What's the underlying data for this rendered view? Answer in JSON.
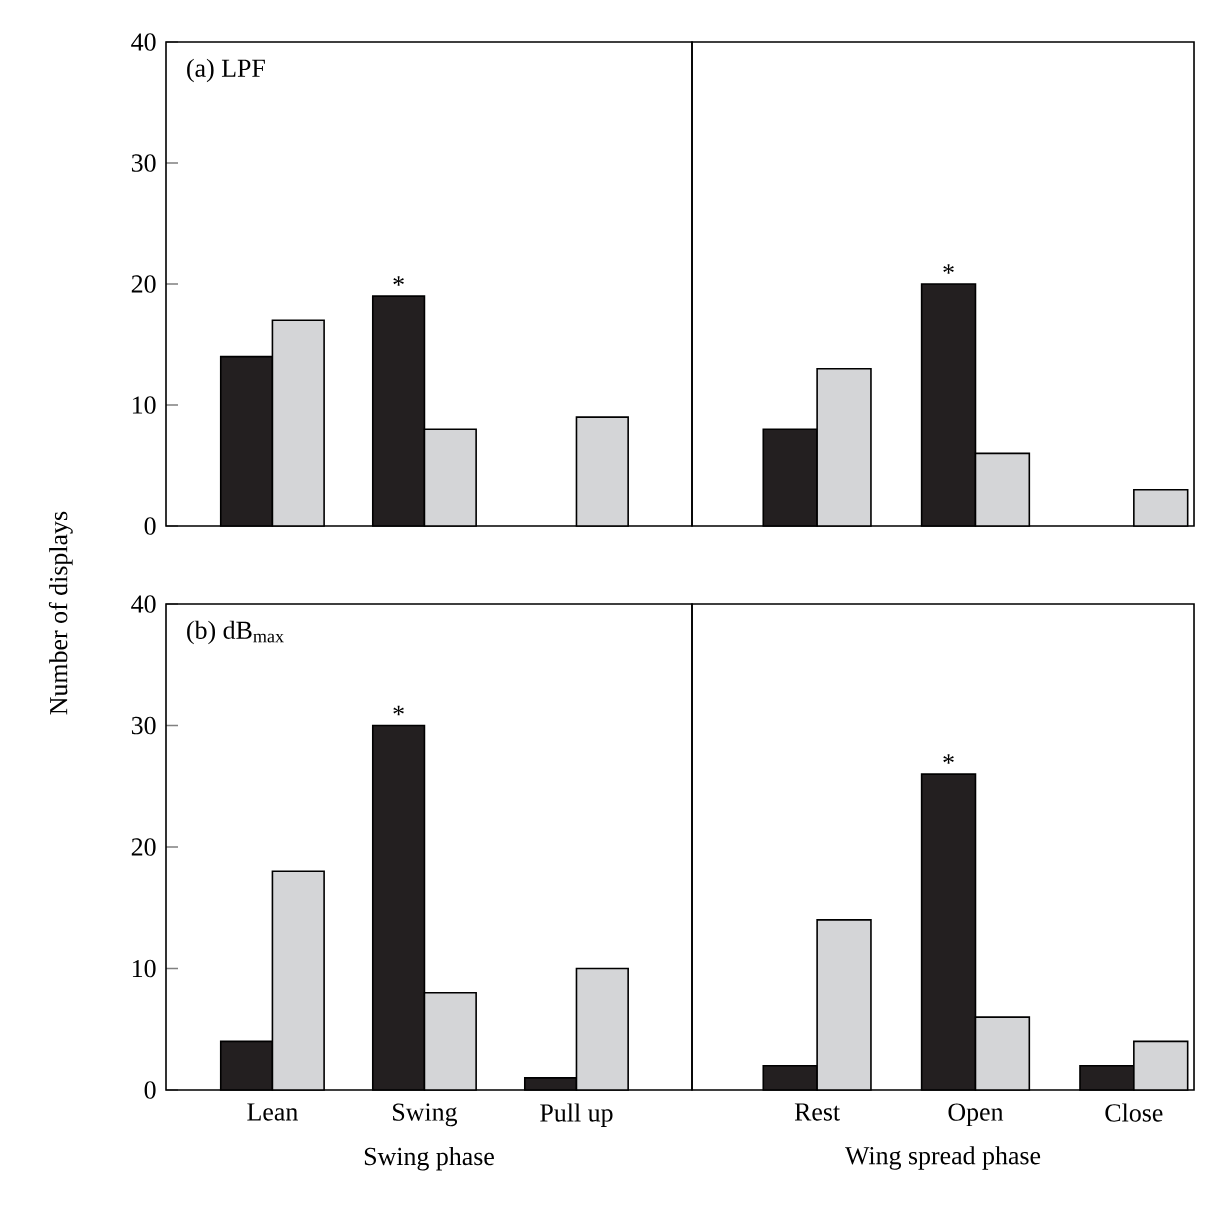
{
  "chart_data": [
    {
      "type": "bar",
      "title": "(a) LPF",
      "ylabel": "Number of displays",
      "categories": [
        "Lean",
        "Swing",
        "Pull up"
      ],
      "series": [
        {
          "color": "#231f20",
          "values": [
            14,
            19,
            null
          ]
        },
        {
          "color": "#d4d5d7",
          "values": [
            17,
            8,
            9
          ]
        }
      ],
      "ylim": [
        0,
        40
      ],
      "yticks": [
        0,
        10,
        20,
        30,
        40
      ],
      "tick_labels": "y",
      "annotations": [
        {
          "text": "*",
          "x": "Swing",
          "y": 19
        }
      ]
    },
    {
      "type": "bar",
      "categories": [
        "Rest",
        "Open",
        "Close"
      ],
      "series": [
        {
          "color": "#231f20",
          "values": [
            8,
            20,
            null
          ]
        },
        {
          "color": "#d4d5d7",
          "values": [
            13,
            6,
            3
          ]
        }
      ],
      "ylim": [
        0,
        40
      ],
      "yticks": [
        0,
        10,
        20,
        30,
        40
      ],
      "tick_labels": false,
      "annotations": [
        {
          "text": "*",
          "x": "Open",
          "y": 20
        }
      ]
    },
    {
      "type": "bar",
      "title": "(b) dB$_{max}$",
      "xlabel": "Swing phase",
      "categories": [
        "Lean",
        "Swing",
        "Pull up"
      ],
      "series": [
        {
          "color": "#231f20",
          "values": [
            4,
            30,
            1
          ]
        },
        {
          "color": "#d4d5d7",
          "values": [
            18,
            8,
            10
          ]
        }
      ],
      "ylim": [
        0,
        40
      ],
      "yticks": [
        0,
        10,
        20,
        30,
        40
      ],
      "annotations": [
        {
          "text": "*",
          "x": "Swing",
          "y": 30
        }
      ]
    },
    {
      "type": "bar",
      "xlabel": "Wing spread phase",
      "categories": [
        "Rest",
        "Open",
        "Close"
      ],
      "series": [
        {
          "color": "#231f20",
          "values": [
            2,
            26,
            2
          ]
        },
        {
          "color": "#d4d5d7",
          "values": [
            14,
            6,
            4
          ]
        }
      ],
      "ylim": [
        0,
        40
      ],
      "yticks": [
        0,
        10,
        20,
        30,
        40
      ],
      "tick_labels": "x",
      "annotations": [
        {
          "text": "*",
          "x": "Open",
          "y": 26
        }
      ]
    }
  ]
}
